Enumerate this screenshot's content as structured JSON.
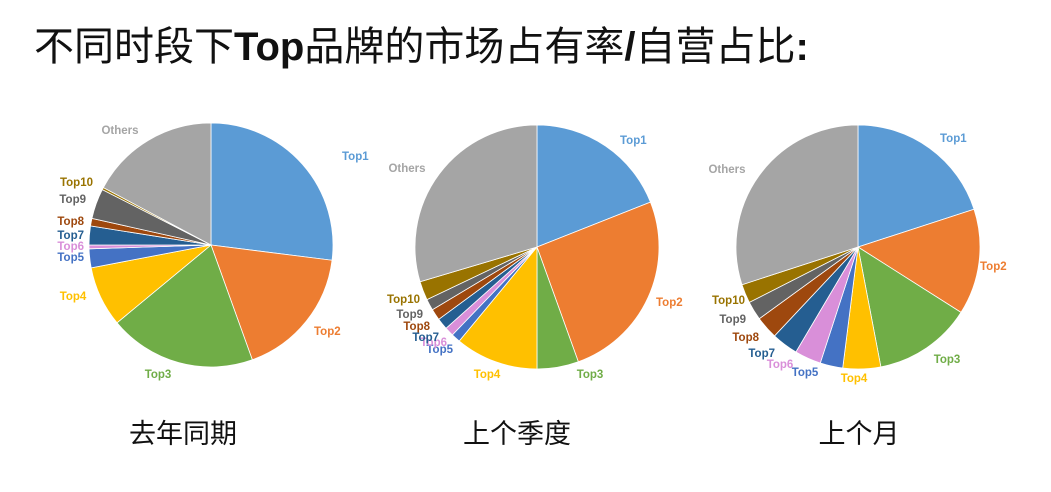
{
  "title": {
    "prefix": "不同时段下",
    "bold_a": "Top",
    "middle": "品牌的市场占有率",
    "bold_b": "/",
    "suffix": "自营占比",
    "bold_c": ":"
  },
  "colors": {
    "Top1": "#5b9bd5",
    "Top2": "#ed7d31",
    "Top3": "#70ad47",
    "Top4": "#ffc000",
    "Top5": "#4472c4",
    "Top6": "#d98fd9",
    "Top7": "#255e91",
    "Top8": "#9e480e",
    "Top9": "#636363",
    "Top10": "#997300",
    "Others": "#a5a5a5"
  },
  "chart_data": [
    {
      "type": "pie",
      "caption": "去年同期",
      "labels": [
        "Top1",
        "Top2",
        "Top3",
        "Top4",
        "Top5",
        "Top6",
        "Top7",
        "Top8",
        "Top9",
        "Top10",
        "Others"
      ],
      "values": [
        27.0,
        17.5,
        19.5,
        8.0,
        2.5,
        0.5,
        2.5,
        1.0,
        4.0,
        0.3,
        17.2
      ]
    },
    {
      "type": "pie",
      "caption": "上个季度",
      "labels": [
        "Top1",
        "Top2",
        "Top3",
        "Top4",
        "Top5",
        "Top6",
        "Top7",
        "Top8",
        "Top9",
        "Top10",
        "Others"
      ],
      "values": [
        19.0,
        25.5,
        5.5,
        11.0,
        1.2,
        1.2,
        1.5,
        1.5,
        1.5,
        2.5,
        29.6
      ]
    },
    {
      "type": "pie",
      "caption": "上个月",
      "labels": [
        "Top1",
        "Top2",
        "Top3",
        "Top4",
        "Top5",
        "Top6",
        "Top7",
        "Top8",
        "Top9",
        "Top10",
        "Others"
      ],
      "values": [
        20.0,
        14.0,
        13.0,
        5.0,
        3.0,
        3.5,
        3.5,
        3.0,
        2.5,
        2.5,
        30.0
      ]
    }
  ]
}
